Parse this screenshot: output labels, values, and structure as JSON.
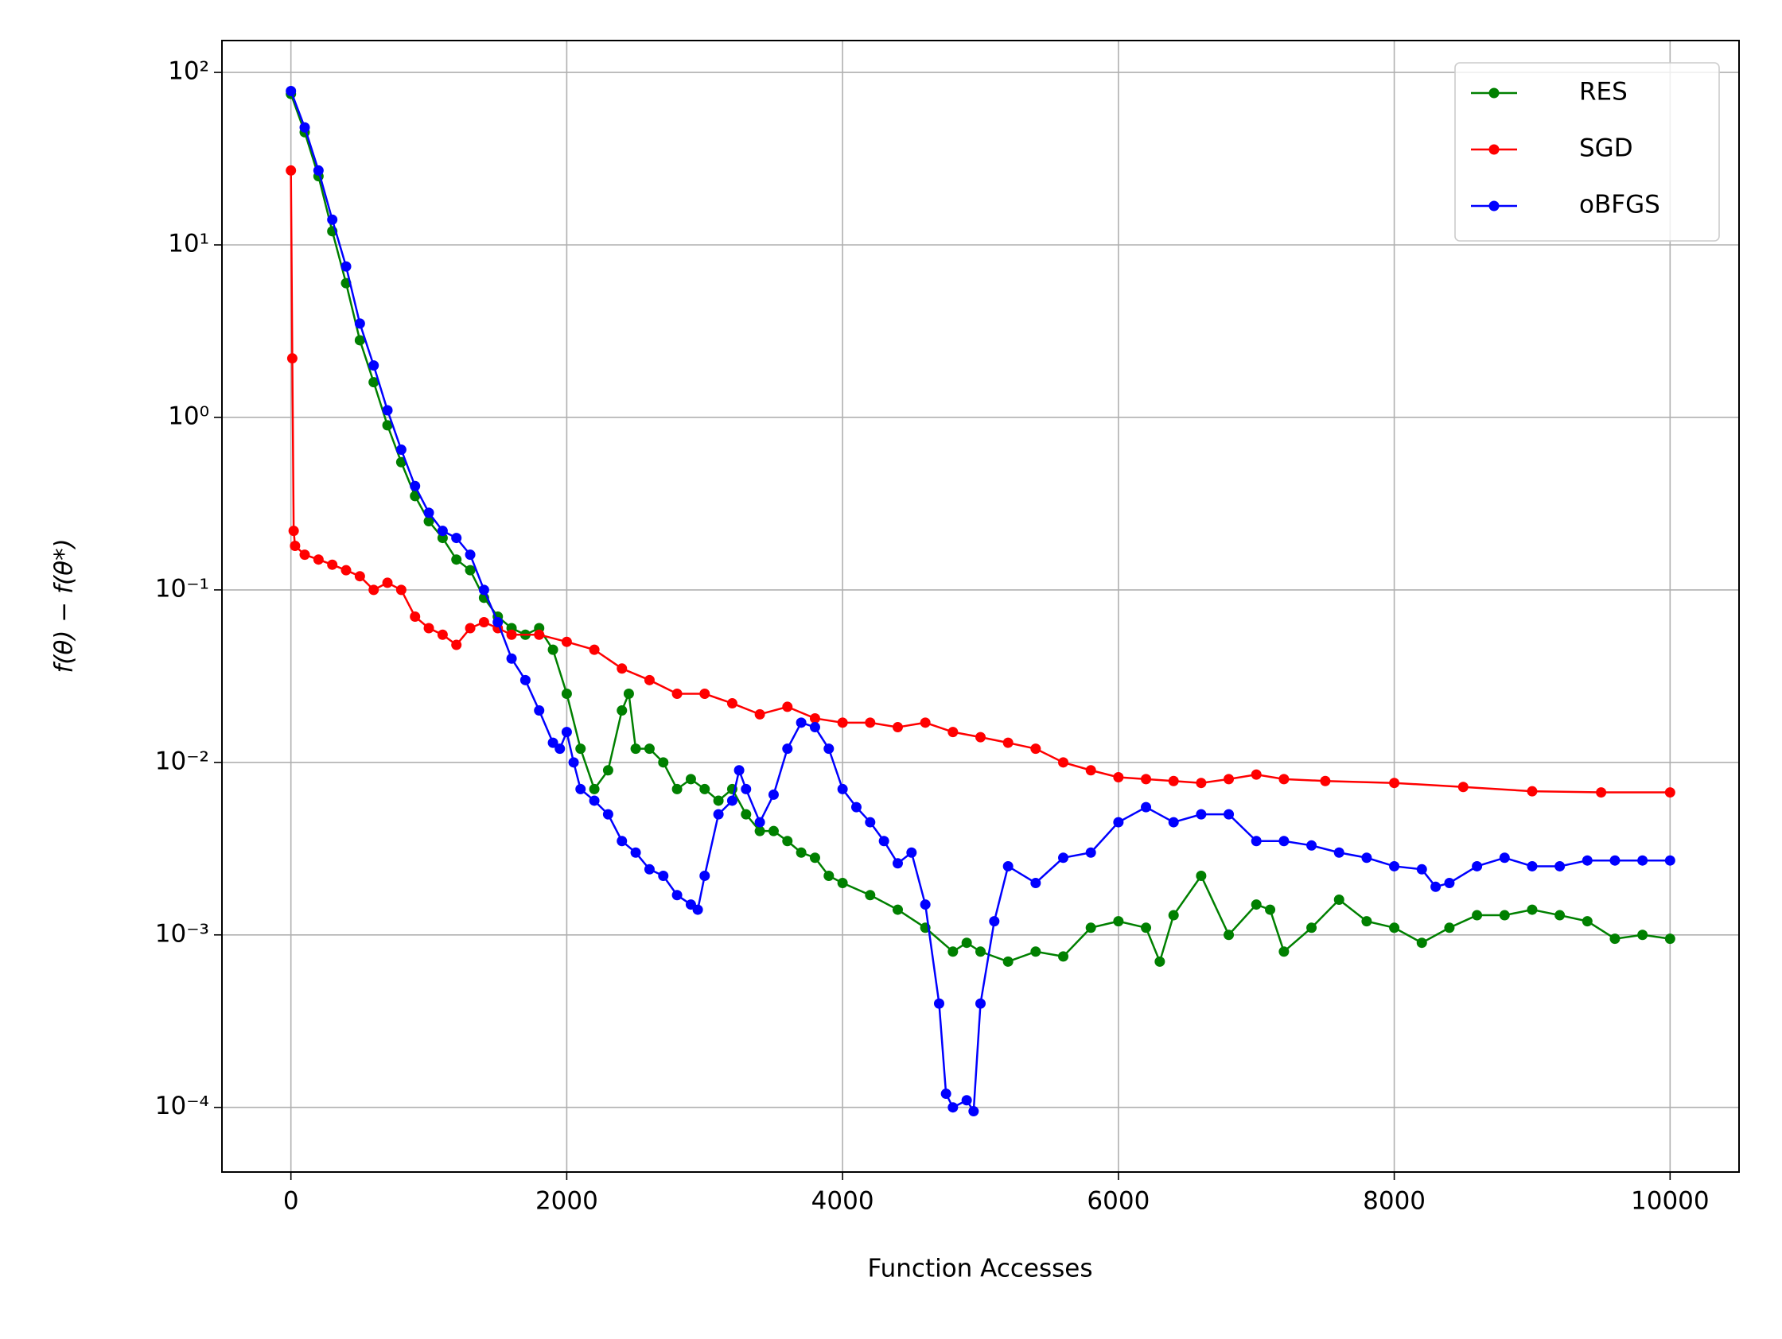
{
  "chart_data": {
    "type": "line",
    "xlabel": "Function Accesses",
    "ylabel": "f(θ) − f(θ*)",
    "xlim": [
      -500,
      10500
    ],
    "xticks": [
      0,
      2000,
      4000,
      6000,
      8000,
      10000
    ],
    "ylim": [
      4.22e-05,
      153
    ],
    "yscale": "log",
    "yticks": [
      {
        "value": 0.0001,
        "label": "10⁻⁴"
      },
      {
        "value": 0.001,
        "label": "10⁻³"
      },
      {
        "value": 0.01,
        "label": "10⁻²"
      },
      {
        "value": 0.1,
        "label": "10⁻¹"
      },
      {
        "value": 1,
        "label": "10⁰"
      },
      {
        "value": 10,
        "label": "10¹"
      },
      {
        "value": 100,
        "label": "10²"
      }
    ],
    "grid": true,
    "legend": "upper right",
    "series": [
      {
        "name": "RES",
        "color": "#008000",
        "x": [
          0,
          100,
          200,
          300,
          400,
          500,
          600,
          700,
          800,
          900,
          1000,
          1100,
          1200,
          1300,
          1400,
          1500,
          1600,
          1700,
          1800,
          1900,
          2000,
          2100,
          2200,
          2300,
          2400,
          2450,
          2500,
          2600,
          2700,
          2800,
          2900,
          3000,
          3100,
          3200,
          3300,
          3400,
          3500,
          3600,
          3700,
          3800,
          3900,
          4000,
          4200,
          4400,
          4600,
          4800,
          4900,
          5000,
          5200,
          5400,
          5600,
          5800,
          6000,
          6200,
          6300,
          6400,
          6600,
          6800,
          7000,
          7100,
          7200,
          7400,
          7600,
          7800,
          8000,
          8200,
          8400,
          8600,
          8800,
          9000,
          9200,
          9400,
          9600,
          9800,
          10000
        ],
        "values": [
          75,
          45,
          25,
          12,
          6,
          2.8,
          1.6,
          0.9,
          0.55,
          0.35,
          0.25,
          0.2,
          0.15,
          0.13,
          0.09,
          0.07,
          0.06,
          0.055,
          0.06,
          0.045,
          0.025,
          0.012,
          0.007,
          0.009,
          0.02,
          0.025,
          0.012,
          0.012,
          0.01,
          0.007,
          0.008,
          0.007,
          0.006,
          0.007,
          0.005,
          0.004,
          0.004,
          0.0035,
          0.003,
          0.0028,
          0.0022,
          0.002,
          0.0017,
          0.0014,
          0.0011,
          0.0008,
          0.0009,
          0.0008,
          0.0007,
          0.0008,
          0.00075,
          0.0011,
          0.0012,
          0.0011,
          0.0007,
          0.0013,
          0.0022,
          0.001,
          0.0015,
          0.0014,
          0.0008,
          0.0011,
          0.0016,
          0.0012,
          0.0011,
          0.0009,
          0.0011,
          0.0013,
          0.0013,
          0.0014,
          0.0013,
          0.0012,
          0.00095,
          0.001,
          0.00095
        ]
      },
      {
        "name": "SGD",
        "color": "#ff0000",
        "x": [
          0,
          10,
          20,
          30,
          100,
          200,
          300,
          400,
          500,
          600,
          700,
          800,
          900,
          1000,
          1100,
          1200,
          1300,
          1400,
          1500,
          1600,
          1800,
          2000,
          2200,
          2400,
          2600,
          2800,
          3000,
          3200,
          3400,
          3600,
          3800,
          4000,
          4200,
          4400,
          4600,
          4800,
          5000,
          5200,
          5400,
          5600,
          5800,
          6000,
          6200,
          6400,
          6600,
          6800,
          7000,
          7200,
          7500,
          8000,
          8500,
          9000,
          9500,
          10000
        ],
        "values": [
          27,
          2.2,
          0.22,
          0.18,
          0.16,
          0.15,
          0.14,
          0.13,
          0.12,
          0.1,
          0.11,
          0.1,
          0.07,
          0.06,
          0.055,
          0.048,
          0.06,
          0.065,
          0.06,
          0.055,
          0.055,
          0.05,
          0.045,
          0.035,
          0.03,
          0.025,
          0.025,
          0.022,
          0.019,
          0.021,
          0.018,
          0.017,
          0.017,
          0.016,
          0.017,
          0.015,
          0.014,
          0.013,
          0.012,
          0.01,
          0.009,
          0.0082,
          0.008,
          0.0078,
          0.0076,
          0.008,
          0.0085,
          0.008,
          0.0078,
          0.0076,
          0.0072,
          0.0068,
          0.0067,
          0.0067
        ]
      },
      {
        "name": "oBFGS",
        "color": "#0000ff",
        "x": [
          0,
          100,
          200,
          300,
          400,
          500,
          600,
          700,
          800,
          900,
          1000,
          1100,
          1200,
          1300,
          1400,
          1500,
          1600,
          1700,
          1800,
          1900,
          1950,
          2000,
          2050,
          2100,
          2200,
          2300,
          2400,
          2500,
          2600,
          2700,
          2800,
          2900,
          2950,
          3000,
          3100,
          3200,
          3250,
          3300,
          3400,
          3500,
          3600,
          3700,
          3800,
          3900,
          4000,
          4100,
          4200,
          4300,
          4400,
          4500,
          4600,
          4700,
          4750,
          4800,
          4900,
          4950,
          5000,
          5100,
          5200,
          5400,
          5600,
          5800,
          6000,
          6200,
          6400,
          6600,
          6800,
          7000,
          7200,
          7400,
          7600,
          7800,
          8000,
          8200,
          8300,
          8400,
          8600,
          8800,
          9000,
          9200,
          9400,
          9600,
          9800,
          10000
        ],
        "values": [
          78,
          48,
          27,
          14,
          7.5,
          3.5,
          2,
          1.1,
          0.65,
          0.4,
          0.28,
          0.22,
          0.2,
          0.16,
          0.1,
          0.065,
          0.04,
          0.03,
          0.02,
          0.013,
          0.012,
          0.015,
          0.01,
          0.007,
          0.006,
          0.005,
          0.0035,
          0.003,
          0.0024,
          0.0022,
          0.0017,
          0.0015,
          0.0014,
          0.0022,
          0.005,
          0.006,
          0.009,
          0.007,
          0.0045,
          0.0065,
          0.012,
          0.017,
          0.016,
          0.012,
          0.007,
          0.0055,
          0.0045,
          0.0035,
          0.0026,
          0.003,
          0.0015,
          0.0004,
          0.00012,
          0.0001,
          0.00011,
          9.5e-05,
          0.0004,
          0.0012,
          0.0025,
          0.002,
          0.0028,
          0.003,
          0.0045,
          0.0055,
          0.0045,
          0.005,
          0.005,
          0.0035,
          0.0035,
          0.0033,
          0.003,
          0.0028,
          0.0025,
          0.0024,
          0.0019,
          0.002,
          0.0025,
          0.0028,
          0.0025,
          0.0025,
          0.0027,
          0.0027,
          0.0027,
          0.0027
        ]
      }
    ]
  }
}
